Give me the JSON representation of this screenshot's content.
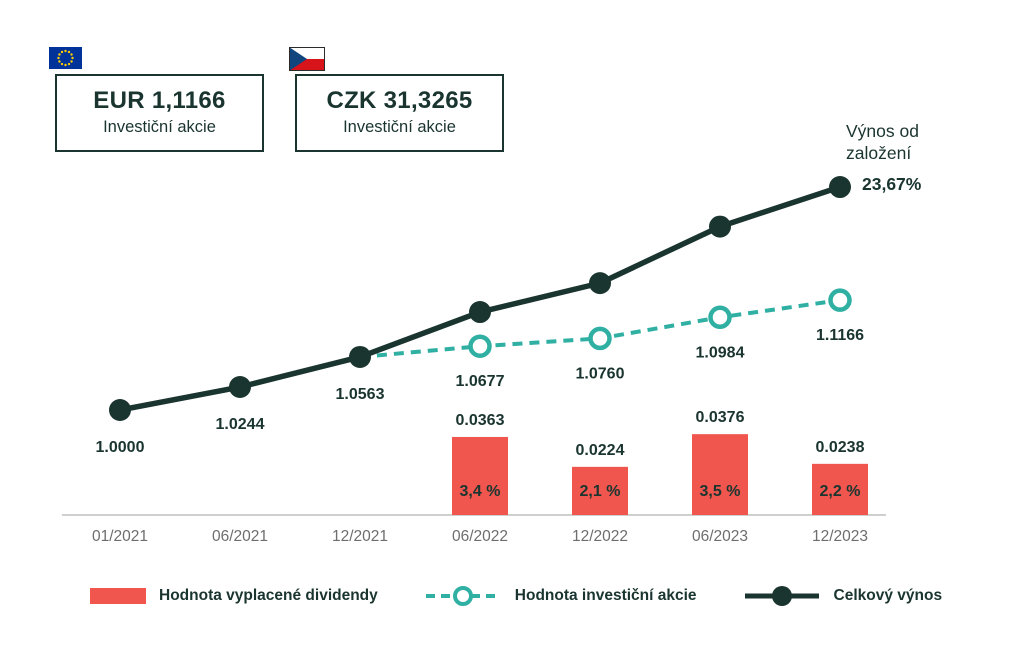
{
  "header": {
    "eur_box": {
      "flag": "eu-flag",
      "value": "EUR 1,1166",
      "label": "Investiční akcie"
    },
    "czk_box": {
      "flag": "cz-flag",
      "value": "CZK 31,3265",
      "label": "Investiční akcie"
    }
  },
  "annotation": {
    "line1": "Výnos od",
    "line2": "založení",
    "value": "23,67%"
  },
  "colors": {
    "dark": "#1a342f",
    "teal": "#2fb0a3",
    "red": "#f0564e",
    "axis": "#cfcfcf",
    "tick": "#6d6d6d"
  },
  "chart_data": {
    "type": "line+bar",
    "categories": [
      "01/2021",
      "06/2021",
      "12/2021",
      "06/2022",
      "12/2022",
      "06/2023",
      "12/2023"
    ],
    "series": [
      {
        "name": "Celkový výnos",
        "type": "line",
        "style": "solid",
        "color": "#1a342f",
        "values": [
          1.0,
          1.0244,
          1.0563,
          1.104,
          1.1347,
          1.1947,
          1.2367
        ],
        "point_labels": [
          "1.0000",
          "1.0244",
          "1.0563",
          "",
          "",
          "",
          ""
        ]
      },
      {
        "name": "Hodnota investiční akcie",
        "type": "line",
        "style": "dashed",
        "color": "#2fb0a3",
        "values": [
          null,
          null,
          1.0563,
          1.0677,
          1.076,
          1.0984,
          1.1166
        ],
        "point_labels": [
          "",
          "",
          "",
          "1.0677",
          "1.0760",
          "1.0984",
          "1.1166"
        ]
      },
      {
        "name": "Hodnota vyplacené dividendy",
        "type": "bar",
        "color": "#f0564e",
        "values": [
          null,
          null,
          null,
          0.0363,
          0.0224,
          0.0376,
          0.0238
        ],
        "bar_labels": [
          "",
          "",
          "",
          "0.0363",
          "0.0224",
          "0.0376",
          "0.0238"
        ],
        "bar_pct_labels": [
          "",
          "",
          "",
          "3,4 %",
          "2,1 %",
          "3,5 %",
          "2,2 %"
        ]
      }
    ],
    "total_return_final": "23,67%",
    "grid": false,
    "legend_position": "bottom"
  },
  "legend": [
    {
      "label": "Hodnota vyplacené dividendy",
      "swatch": "bar"
    },
    {
      "label": "Hodnota investiční akcie",
      "swatch": "dashed-line-circle"
    },
    {
      "label": "Celkový výnos",
      "swatch": "solid-line-dot"
    }
  ]
}
